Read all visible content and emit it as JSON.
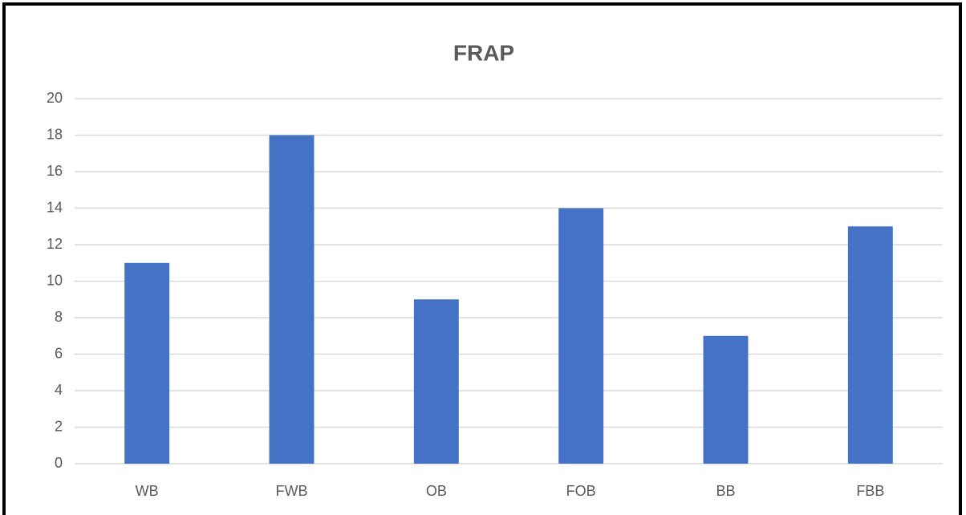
{
  "chart_data": {
    "type": "bar",
    "title": "FRAP",
    "categories": [
      "WB",
      "FWB",
      "OB",
      "FOB",
      "BB",
      "FBB"
    ],
    "values": [
      11,
      18,
      9,
      14,
      7,
      13
    ],
    "color": "#4472c4",
    "ylim": [
      0,
      20
    ],
    "yticks": [
      0,
      2,
      4,
      6,
      8,
      10,
      12,
      14,
      16,
      18,
      20
    ],
    "grid": true
  }
}
